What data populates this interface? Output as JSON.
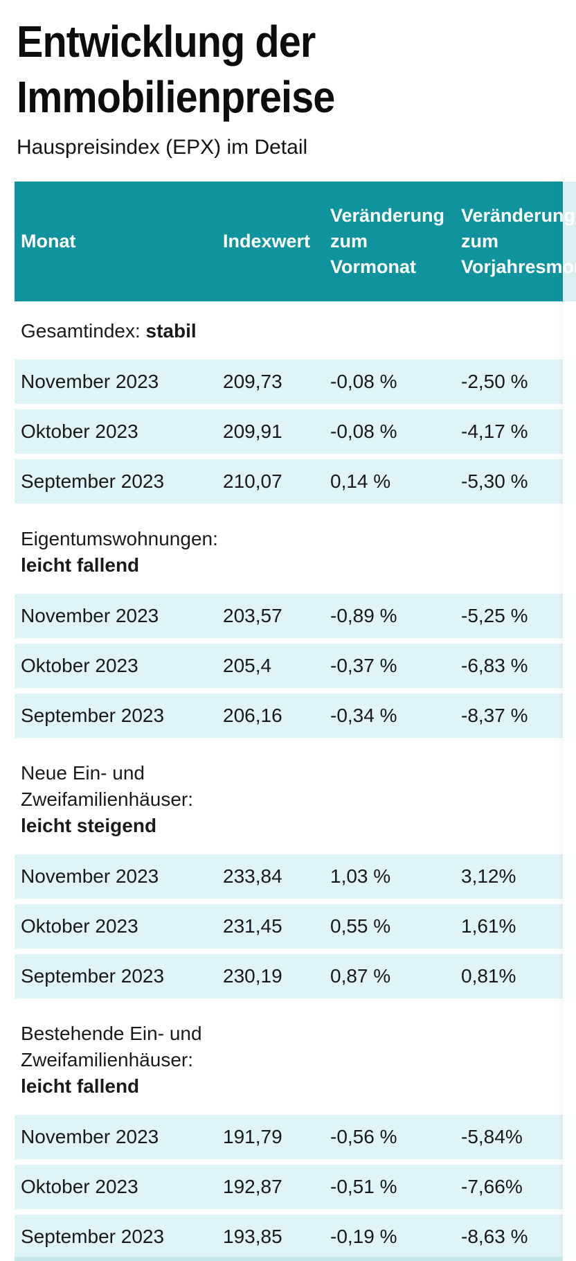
{
  "title_line1": "Entwicklung der",
  "title_line2": "Immobilienpreise",
  "subtitle": "Hauspreisindex (EPX) im Detail",
  "colors": {
    "header_teal": "#0f939d",
    "row_background": "#dff4f6",
    "bottom_edge": "#c7e6e9",
    "text": "#1a1a1a"
  },
  "chart_data": {
    "type": "table",
    "columns": [
      "Monat",
      "Indexwert",
      "Veränderung zum Vormonat",
      "Veränderung zum Vorjahresmonat"
    ],
    "header": {
      "monat": "Monat",
      "indexwert": "Indexwert",
      "vormonat": "Veränderung\nzum\nVormonat",
      "vorjahresmonat": "Veränderung\nzum\nVorjahresmonat"
    },
    "sections": [
      {
        "name_lines": [
          "Gesamtindex:"
        ],
        "status": "stabil",
        "rows": [
          {
            "monat": "November 2023",
            "indexwert": "209,73",
            "vormonat": "-0,08 %",
            "vorjahresmonat": "-2,50 %"
          },
          {
            "monat": "Oktober 2023",
            "indexwert": "209,91",
            "vormonat": "-0,08 %",
            "vorjahresmonat": "-4,17 %"
          },
          {
            "monat": "September 2023",
            "indexwert": "210,07",
            "vormonat": "0,14 %",
            "vorjahresmonat": "-5,30 %"
          }
        ]
      },
      {
        "name_lines": [
          "Eigentumswohnungen:"
        ],
        "status": "leicht fallend",
        "rows": [
          {
            "monat": "November 2023",
            "indexwert": "203,57",
            "vormonat": "-0,89 %",
            "vorjahresmonat": "-5,25 %"
          },
          {
            "monat": "Oktober 2023",
            "indexwert": "205,4",
            "vormonat": "-0,37 %",
            "vorjahresmonat": "-6,83 %"
          },
          {
            "monat": "September 2023",
            "indexwert": "206,16",
            "vormonat": "-0,34 %",
            "vorjahresmonat": "-8,37 %"
          }
        ]
      },
      {
        "name_lines": [
          "Neue Ein- und",
          "Zweifamilienhäuser:"
        ],
        "status": "leicht steigend",
        "rows": [
          {
            "monat": "November 2023",
            "indexwert": "233,84",
            "vormonat": "1,03 %",
            "vorjahresmonat": "3,12%"
          },
          {
            "monat": "Oktober 2023",
            "indexwert": "231,45",
            "vormonat": "0,55 %",
            "vorjahresmonat": "1,61%"
          },
          {
            "monat": "September 2023",
            "indexwert": "230,19",
            "vormonat": "0,87 %",
            "vorjahresmonat": "0,81%"
          }
        ]
      },
      {
        "name_lines": [
          "Bestehende Ein- und",
          "Zweifamilienhäuser:"
        ],
        "status": "leicht fallend",
        "rows": [
          {
            "monat": "November 2023",
            "indexwert": "191,79",
            "vormonat": "-0,56 %",
            "vorjahresmonat": "-5,84%"
          },
          {
            "monat": "Oktober 2023",
            "indexwert": "192,87",
            "vormonat": "-0,51 %",
            "vorjahresmonat": "-7,66%"
          },
          {
            "monat": "September 2023",
            "indexwert": "193,85",
            "vormonat": "-0,19 %",
            "vorjahresmonat": "-8,63 %"
          }
        ]
      }
    ]
  }
}
